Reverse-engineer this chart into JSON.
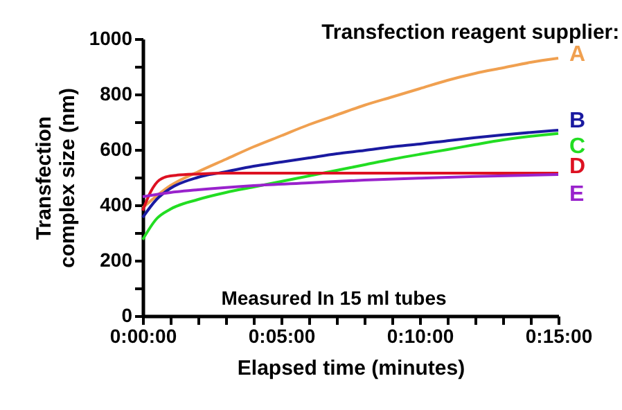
{
  "chart_data": {
    "type": "line",
    "title": "Transfection reagent supplier:",
    "xlabel": "Elapsed time  (minutes)",
    "ylabel": "Transfection complex size  (nm)",
    "annotations": [
      "Measured In 15 ml tubes"
    ],
    "xlim": [
      0,
      15
    ],
    "xticks": [
      {
        "value": 0,
        "label": "0:00:00"
      },
      {
        "value": 1,
        "label": null
      },
      {
        "value": 2,
        "label": null
      },
      {
        "value": 3,
        "label": null
      },
      {
        "value": 4,
        "label": null
      },
      {
        "value": 5,
        "label": "0:05:00"
      },
      {
        "value": 6,
        "label": null
      },
      {
        "value": 7,
        "label": null
      },
      {
        "value": 8,
        "label": null
      },
      {
        "value": 9,
        "label": null
      },
      {
        "value": 10,
        "label": "0:10:00"
      },
      {
        "value": 11,
        "label": null
      },
      {
        "value": 12,
        "label": null
      },
      {
        "value": 13,
        "label": null
      },
      {
        "value": 14,
        "label": null
      },
      {
        "value": 15,
        "label": "0:15:00"
      }
    ],
    "ylim": [
      0,
      1000
    ],
    "yticks": [
      0,
      {
        "value": 100,
        "label": null
      },
      200,
      {
        "value": 300,
        "label": null
      },
      400,
      {
        "value": 500,
        "label": null
      },
      600,
      {
        "value": 700,
        "label": null
      },
      800,
      {
        "value": 900,
        "label": null
      },
      1000
    ],
    "grid": false,
    "legend": false,
    "marker": "none",
    "line_style": "solid",
    "series": [
      {
        "name": "A",
        "color": "#f0a050",
        "x": [
          0,
          1,
          2,
          3,
          4,
          5,
          6,
          7,
          8,
          9,
          10,
          11,
          12,
          13,
          14,
          15
        ],
        "values": [
          390,
          470,
          520,
          565,
          610,
          650,
          690,
          725,
          760,
          790,
          820,
          850,
          875,
          895,
          915,
          930
        ]
      },
      {
        "name": "B",
        "color": "#1a1aa0",
        "x": [
          0,
          0.5,
          1,
          2,
          3,
          4,
          5,
          6,
          7,
          8,
          9,
          10,
          11,
          12,
          13,
          14,
          15
        ],
        "values": [
          355,
          420,
          460,
          500,
          520,
          540,
          555,
          570,
          585,
          597,
          610,
          620,
          632,
          643,
          653,
          662,
          670
        ]
      },
      {
        "name": "C",
        "color": "#22dd22",
        "x": [
          0,
          0.5,
          1,
          2,
          3,
          4,
          5,
          6,
          7,
          8,
          9,
          10,
          11,
          12,
          13,
          14,
          15
        ],
        "values": [
          275,
          350,
          385,
          420,
          445,
          465,
          485,
          505,
          525,
          545,
          565,
          583,
          600,
          618,
          635,
          648,
          658
        ]
      },
      {
        "name": "D",
        "color": "#dd1122",
        "x": [
          0,
          0.3,
          0.6,
          1,
          2,
          3,
          6,
          9,
          12,
          15
        ],
        "values": [
          380,
          450,
          490,
          505,
          512,
          515,
          515,
          515,
          515,
          515
        ]
      },
      {
        "name": "E",
        "color": "#9922cc",
        "x": [
          0,
          1,
          2,
          4,
          6,
          8,
          10,
          12,
          15
        ],
        "values": [
          430,
          445,
          455,
          470,
          480,
          490,
          497,
          503,
          510
        ]
      }
    ]
  }
}
